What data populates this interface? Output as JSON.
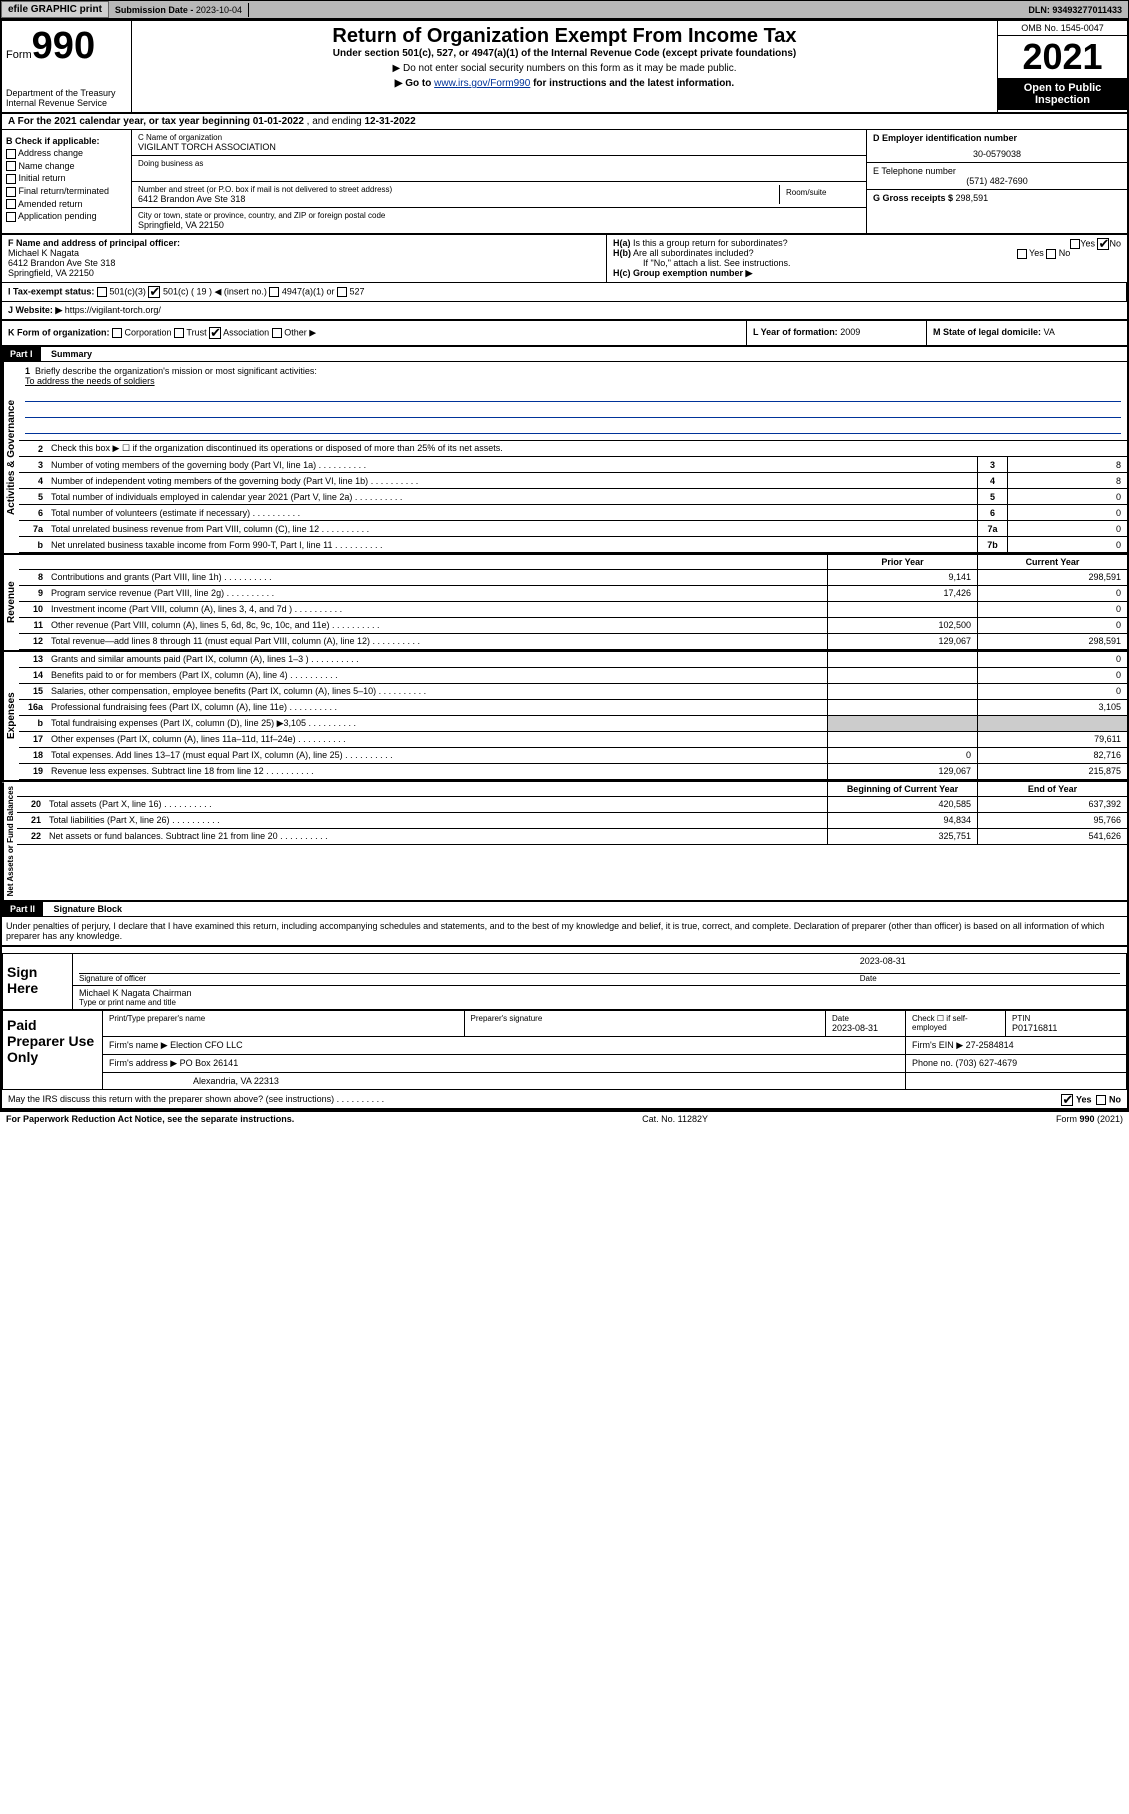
{
  "topbar": {
    "efile": "efile GRAPHIC print",
    "submission_label": "Submission Date - ",
    "submission_date": "2023-10-04",
    "dln_label": "DLN: ",
    "dln": "93493277011433"
  },
  "header": {
    "form_prefix": "Form",
    "form_number": "990",
    "dept": "Department of the Treasury\nInternal Revenue Service",
    "title": "Return of Organization Exempt From Income Tax",
    "subtitle": "Under section 501(c), 527, or 4947(a)(1) of the Internal Revenue Code (except private foundations)",
    "note1": "▶ Do not enter social security numbers on this form as it may be made public.",
    "note2_pre": "▶ Go to ",
    "note2_link": "www.irs.gov/Form990",
    "note2_post": " for instructions and the latest information.",
    "omb": "OMB No. 1545-0047",
    "year": "2021",
    "open_public": "Open to Public Inspection"
  },
  "section_a": {
    "prefix": "A For the 2021 calendar year, or tax year beginning ",
    "begin": "01-01-2022",
    "mid": " , and ending ",
    "end": "12-31-2022"
  },
  "col_b": {
    "header": "B Check if applicable:",
    "items": [
      "Address change",
      "Name change",
      "Initial return",
      "Final return/terminated",
      "Amended return",
      "Application pending"
    ]
  },
  "col_c": {
    "name_label": "C Name of organization",
    "name": "VIGILANT TORCH ASSOCIATION",
    "dba_label": "Doing business as",
    "street_label": "Number and street (or P.O. box if mail is not delivered to street address)",
    "street": "6412 Brandon Ave Ste 318",
    "room_label": "Room/suite",
    "city_label": "City or town, state or province, country, and ZIP or foreign postal code",
    "city": "Springfield, VA  22150"
  },
  "col_d": {
    "ein_label": "D Employer identification number",
    "ein": "30-0579038",
    "phone_label": "E Telephone number",
    "phone": "(571) 482-7690",
    "gross_label": "G Gross receipts $ ",
    "gross": "298,591"
  },
  "row_f": {
    "label": "F Name and address of principal officer:",
    "name": "Michael K Nagata",
    "addr1": "6412 Brandon Ave Ste 318",
    "addr2": "Springfield, VA  22150"
  },
  "row_h": {
    "ha_label": "H(a) Is this a group return for subordinates?",
    "hb_label": "H(b) Are all subordinates included?",
    "hb_note": "If \"No,\" attach a list. See instructions.",
    "hc_label": "H(c) Group exemption number ▶",
    "yes": "Yes",
    "no": "No"
  },
  "row_i": {
    "label": "I   Tax-exempt status:",
    "opt1": "501(c)(3)",
    "opt2": "501(c) ( 19 ) ◀ (insert no.)",
    "opt3": "4947(a)(1) or",
    "opt4": "527"
  },
  "row_j": {
    "label": "J   Website: ▶ ",
    "site": "https://vigilant-torch.org/"
  },
  "row_k": {
    "label": "K Form of organization:",
    "opts": [
      "Corporation",
      "Trust",
      "Association",
      "Other ▶"
    ]
  },
  "row_l": {
    "label": "L Year of formation: ",
    "val": "2009"
  },
  "row_m": {
    "label": "M State of legal domicile: ",
    "val": "VA"
  },
  "part1": {
    "header": "Part I",
    "title": "Summary",
    "line1_label": "Briefly describe the organization's mission or most significant activities:",
    "line1_text": "To address the needs of soldiers",
    "line2": "Check this box ▶ ☐ if the organization discontinued its operations or disposed of more than 25% of its net assets.",
    "vert_labels": {
      "gov": "Activities & Governance",
      "rev": "Revenue",
      "exp": "Expenses",
      "net": "Net Assets or Fund Balances"
    },
    "lines_gov": [
      {
        "n": "3",
        "t": "Number of voting members of the governing body (Part VI, line 1a)",
        "box": "3",
        "v": "8"
      },
      {
        "n": "4",
        "t": "Number of independent voting members of the governing body (Part VI, line 1b)",
        "box": "4",
        "v": "8"
      },
      {
        "n": "5",
        "t": "Total number of individuals employed in calendar year 2021 (Part V, line 2a)",
        "box": "5",
        "v": "0"
      },
      {
        "n": "6",
        "t": "Total number of volunteers (estimate if necessary)",
        "box": "6",
        "v": "0"
      },
      {
        "n": "7a",
        "t": "Total unrelated business revenue from Part VIII, column (C), line 12",
        "box": "7a",
        "v": "0"
      },
      {
        "n": "b",
        "t": "Net unrelated business taxable income from Form 990-T, Part I, line 11",
        "box": "7b",
        "v": "0"
      }
    ],
    "col_headers": {
      "prior": "Prior Year",
      "current": "Current Year",
      "begin": "Beginning of Current Year",
      "end": "End of Year"
    },
    "lines_rev": [
      {
        "n": "8",
        "t": "Contributions and grants (Part VIII, line 1h)",
        "v1": "9,141",
        "v2": "298,591"
      },
      {
        "n": "9",
        "t": "Program service revenue (Part VIII, line 2g)",
        "v1": "17,426",
        "v2": "0"
      },
      {
        "n": "10",
        "t": "Investment income (Part VIII, column (A), lines 3, 4, and 7d )",
        "v1": "",
        "v2": "0"
      },
      {
        "n": "11",
        "t": "Other revenue (Part VIII, column (A), lines 5, 6d, 8c, 9c, 10c, and 11e)",
        "v1": "102,500",
        "v2": "0"
      },
      {
        "n": "12",
        "t": "Total revenue—add lines 8 through 11 (must equal Part VIII, column (A), line 12)",
        "v1": "129,067",
        "v2": "298,591"
      }
    ],
    "lines_exp": [
      {
        "n": "13",
        "t": "Grants and similar amounts paid (Part IX, column (A), lines 1–3 )",
        "v1": "",
        "v2": "0"
      },
      {
        "n": "14",
        "t": "Benefits paid to or for members (Part IX, column (A), line 4)",
        "v1": "",
        "v2": "0"
      },
      {
        "n": "15",
        "t": "Salaries, other compensation, employee benefits (Part IX, column (A), lines 5–10)",
        "v1": "",
        "v2": "0"
      },
      {
        "n": "16a",
        "t": "Professional fundraising fees (Part IX, column (A), line 11e)",
        "v1": "",
        "v2": "3,105"
      },
      {
        "n": "b",
        "t": "Total fundraising expenses (Part IX, column (D), line 25) ▶3,105",
        "v1": "shaded",
        "v2": "shaded"
      },
      {
        "n": "17",
        "t": "Other expenses (Part IX, column (A), lines 11a–11d, 11f–24e)",
        "v1": "",
        "v2": "79,611"
      },
      {
        "n": "18",
        "t": "Total expenses. Add lines 13–17 (must equal Part IX, column (A), line 25)",
        "v1": "0",
        "v2": "82,716"
      },
      {
        "n": "19",
        "t": "Revenue less expenses. Subtract line 18 from line 12",
        "v1": "129,067",
        "v2": "215,875"
      }
    ],
    "lines_net": [
      {
        "n": "20",
        "t": "Total assets (Part X, line 16)",
        "v1": "420,585",
        "v2": "637,392"
      },
      {
        "n": "21",
        "t": "Total liabilities (Part X, line 26)",
        "v1": "94,834",
        "v2": "95,766"
      },
      {
        "n": "22",
        "t": "Net assets or fund balances. Subtract line 21 from line 20",
        "v1": "325,751",
        "v2": "541,626"
      }
    ]
  },
  "part2": {
    "header": "Part II",
    "title": "Signature Block",
    "declaration": "Under penalties of perjury, I declare that I have examined this return, including accompanying schedules and statements, and to the best of my knowledge and belief, it is true, correct, and complete. Declaration of preparer (other than officer) is based on all information of which preparer has any knowledge.",
    "sign_here": "Sign Here",
    "sig_officer": "Signature of officer",
    "sig_date": "2023-08-31",
    "date_label": "Date",
    "officer_name": "Michael K Nagata  Chairman",
    "type_name": "Type or print name and title",
    "paid_label": "Paid Preparer Use Only",
    "prep_name_label": "Print/Type preparer's name",
    "prep_sig_label": "Preparer's signature",
    "prep_date_label": "Date",
    "prep_date": "2023-08-31",
    "check_self": "Check ☐ if self-employed",
    "ptin_label": "PTIN",
    "ptin": "P01716811",
    "firm_name_label": "Firm's name   ▶ ",
    "firm_name": "Election CFO LLC",
    "firm_ein_label": "Firm's EIN ▶ ",
    "firm_ein": "27-2584814",
    "firm_addr_label": "Firm's address ▶ ",
    "firm_addr1": "PO Box 26141",
    "firm_addr2": "Alexandria, VA  22313",
    "phone_label": "Phone no. ",
    "phone": "(703) 627-4679",
    "may_irs": "May the IRS discuss this return with the preparer shown above? (see instructions)"
  },
  "footer": {
    "left": "For Paperwork Reduction Act Notice, see the separate instructions.",
    "mid": "Cat. No. 11282Y",
    "right_pre": "Form ",
    "right_form": "990",
    "right_post": " (2021)"
  }
}
